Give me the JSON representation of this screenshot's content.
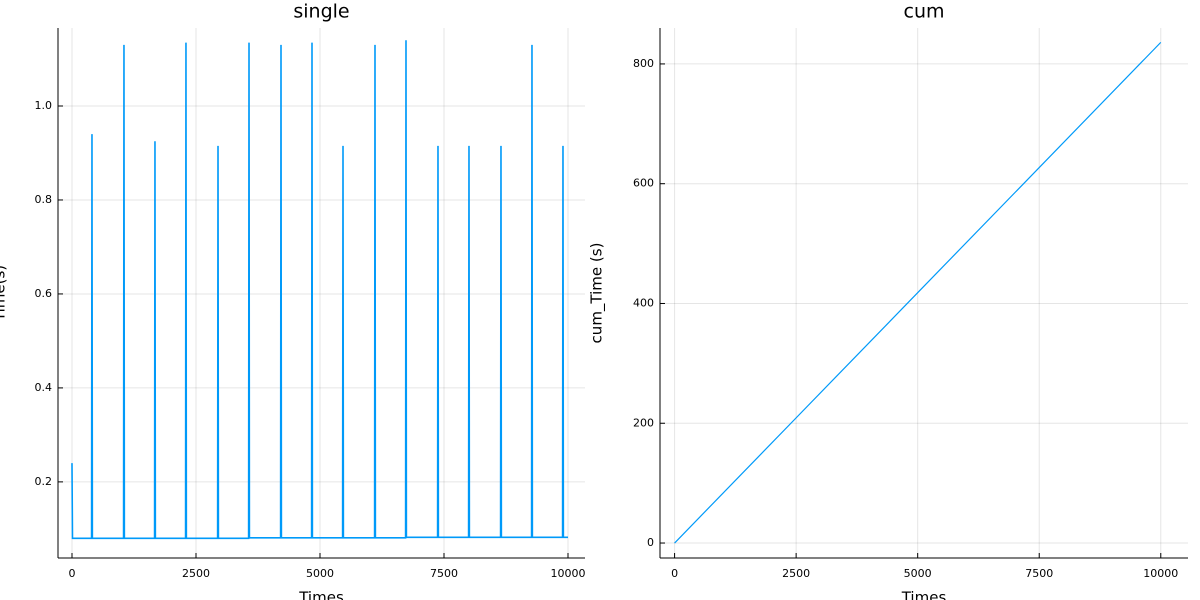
{
  "chart_data": [
    {
      "type": "line",
      "title": "single",
      "x_label": "Times",
      "y_label": "Time(s)",
      "series": [
        {
          "name": "y1",
          "color": "#009af9",
          "x": [
            0,
            10,
            395,
            403,
            411,
            1040,
            1048,
            1056,
            1665,
            1673,
            1681,
            2290,
            2298,
            2306,
            2936,
            2944,
            2952,
            3561,
            3569,
            3577,
            4206,
            4214,
            4222,
            4831,
            4839,
            4847,
            5456,
            5464,
            5472,
            6101,
            6109,
            6117,
            6726,
            6734,
            6742,
            7371,
            7379,
            7387,
            7996,
            8004,
            8012,
            8641,
            8649,
            8657,
            9266,
            9274,
            9282,
            9891,
            9899,
            9907,
            10000
          ],
          "values": [
            0.24,
            0.08,
            0.08,
            0.94,
            0.08,
            0.08,
            1.13,
            0.08,
            0.08,
            0.925,
            0.08,
            0.08,
            1.135,
            0.08,
            0.08,
            0.915,
            0.08,
            0.08,
            1.135,
            0.081,
            0.081,
            1.13,
            0.081,
            0.081,
            1.135,
            0.081,
            0.081,
            0.915,
            0.081,
            0.081,
            1.13,
            0.081,
            0.081,
            1.14,
            0.082,
            0.082,
            0.915,
            0.082,
            0.082,
            0.915,
            0.082,
            0.082,
            0.915,
            0.082,
            0.082,
            1.13,
            0.082,
            0.082,
            0.915,
            0.082,
            0.082
          ]
        }
      ],
      "xlim": [
        -282,
        10343
      ],
      "xticks": [
        0,
        2500,
        5000,
        7500,
        10000
      ],
      "ylim": [
        0.038,
        1.166
      ],
      "yticks": [
        0.2,
        0.4,
        0.6,
        0.8,
        {
          "value": 1,
          "label": "1.0"
        }
      ],
      "grid": true
    },
    {
      "type": "line",
      "title": "cum",
      "x_label": "Times",
      "y_label": "cum_Time (s)",
      "series": [
        {
          "name": "y1",
          "color": "#009af9",
          "x": [
            0,
            2500,
            5000,
            7500,
            10000
          ],
          "values": [
            0,
            209,
            418,
            627,
            836
          ]
        }
      ],
      "xlim": [
        -300,
        10560
      ],
      "xticks": [
        0,
        2500,
        5000,
        7500,
        10000
      ],
      "ylim": [
        -25,
        860
      ],
      "yticks": [
        0,
        200,
        400,
        600,
        800
      ],
      "grid": true
    }
  ]
}
